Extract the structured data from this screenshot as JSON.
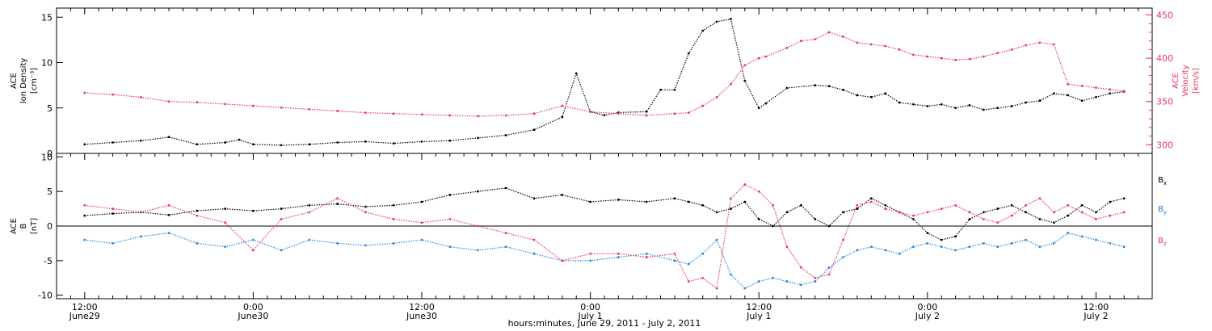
{
  "chart_data": [
    {
      "type": "scatter",
      "panel": "top",
      "ylabel_left": [
        "ACE",
        "Ion Density",
        "[cm⁻³]"
      ],
      "ylabel_right": [
        "ACE",
        "Velocity",
        "[km/s]"
      ],
      "ylim_left": [
        0,
        16
      ],
      "yticks_left": [
        "0",
        "5",
        "10",
        "15"
      ],
      "ylim_right": [
        290,
        458
      ],
      "yticks_right": [
        "300",
        "350",
        "400",
        "450"
      ],
      "xlim_hours": [
        -2,
        76
      ],
      "series": [
        {
          "axis": "left",
          "color": "#000000",
          "x": [
            0,
            2,
            4,
            6,
            8,
            10,
            11,
            12,
            14,
            16,
            18,
            20,
            22,
            24,
            26,
            28,
            30,
            32,
            34,
            35,
            36,
            37,
            38,
            40,
            41,
            42,
            43,
            44,
            45,
            46,
            47,
            48,
            48.5,
            50,
            52,
            53,
            54,
            55,
            56,
            57,
            58,
            59,
            60,
            61,
            62,
            63,
            64,
            65,
            66,
            67,
            68,
            69,
            70,
            71,
            72,
            73,
            74
          ],
          "y": [
            1.0,
            1.2,
            1.4,
            1.8,
            1.0,
            1.2,
            1.5,
            1.0,
            0.9,
            1.0,
            1.2,
            1.3,
            1.1,
            1.3,
            1.4,
            1.7,
            2.0,
            2.6,
            4.0,
            8.8,
            4.6,
            4.2,
            4.5,
            4.6,
            7.0,
            7.0,
            11.0,
            13.5,
            14.5,
            14.8,
            8.0,
            5.0,
            5.5,
            7.2,
            7.5,
            7.4,
            7.0,
            6.4,
            6.2,
            6.6,
            5.6,
            5.4,
            5.2,
            5.4,
            5.0,
            5.3,
            4.8,
            5.0,
            5.2,
            5.6,
            5.8,
            6.6,
            6.4,
            5.8,
            6.2,
            6.6,
            6.8
          ]
        },
        {
          "axis": "right",
          "color": "#e8355f",
          "x": [
            0,
            2,
            4,
            6,
            8,
            10,
            12,
            14,
            16,
            18,
            20,
            22,
            24,
            26,
            28,
            30,
            32,
            34,
            36,
            38,
            40,
            42,
            43,
            44,
            45,
            46,
            47,
            48,
            48.5,
            50,
            51,
            52,
            53,
            54,
            55,
            56,
            57,
            58,
            59,
            60,
            61,
            62,
            63,
            64,
            65,
            66,
            67,
            68,
            69,
            70,
            71,
            72,
            73,
            74
          ],
          "y": [
            360,
            358,
            355,
            350,
            349,
            347,
            345,
            343,
            341,
            339,
            337,
            336,
            335,
            334,
            333,
            334,
            336,
            345,
            338,
            336,
            334,
            336,
            337,
            345,
            355,
            370,
            392,
            400,
            402,
            412,
            420,
            422,
            430,
            425,
            418,
            416,
            414,
            410,
            404,
            402,
            400,
            398,
            399,
            402,
            406,
            410,
            415,
            418,
            416,
            370,
            368,
            366,
            364,
            362
          ]
        }
      ]
    },
    {
      "type": "scatter",
      "panel": "bottom",
      "ylabel": [
        "ACE",
        "B",
        "[nT]"
      ],
      "ylim": [
        -10.5,
        10.5
      ],
      "yticks": [
        "-10",
        "-5",
        "0",
        "5",
        "10"
      ],
      "xlim_hours": [
        -2,
        76
      ],
      "zero_line": true,
      "legend_placement": "right",
      "series": [
        {
          "name": "Bx",
          "color": "#000000",
          "x": [
            0,
            2,
            4,
            6,
            8,
            10,
            12,
            14,
            16,
            18,
            20,
            22,
            24,
            26,
            28,
            30,
            32,
            34,
            36,
            38,
            40,
            42,
            43,
            44,
            45,
            46,
            47,
            48,
            49,
            50,
            51,
            52,
            53,
            54,
            55,
            56,
            57,
            58,
            59,
            60,
            61,
            62,
            63,
            64,
            65,
            66,
            67,
            68,
            69,
            70,
            71,
            72,
            73,
            74
          ],
          "y": [
            1.5,
            1.8,
            2.0,
            1.6,
            2.2,
            2.5,
            2.2,
            2.5,
            3.0,
            3.2,
            2.8,
            3.0,
            3.5,
            4.5,
            5.0,
            5.5,
            4.0,
            4.5,
            3.5,
            3.8,
            3.5,
            4.0,
            3.5,
            3.0,
            2.0,
            2.5,
            3.5,
            1.0,
            0.0,
            2.0,
            3.0,
            1.0,
            0.0,
            2.0,
            2.5,
            4.0,
            3.0,
            2.0,
            1.0,
            -1.0,
            -2.0,
            -1.5,
            1.0,
            2.0,
            2.5,
            3.0,
            2.0,
            1.0,
            0.5,
            1.5,
            3.0,
            2.0,
            3.5,
            4.0
          ]
        },
        {
          "name": "By",
          "color": "#1e88e5",
          "x": [
            0,
            2,
            4,
            6,
            8,
            10,
            12,
            14,
            16,
            18,
            20,
            22,
            24,
            26,
            28,
            30,
            32,
            34,
            36,
            38,
            40,
            42,
            43,
            44,
            45,
            46,
            47,
            48,
            49,
            50,
            51,
            52,
            53,
            54,
            55,
            56,
            57,
            58,
            59,
            60,
            61,
            62,
            63,
            64,
            65,
            66,
            67,
            68,
            69,
            70,
            71,
            72,
            73,
            74
          ],
          "y": [
            -2.0,
            -2.5,
            -1.5,
            -1.0,
            -2.5,
            -3.0,
            -2.0,
            -3.5,
            -2.0,
            -2.5,
            -2.8,
            -2.5,
            -2.0,
            -3.0,
            -3.5,
            -3.0,
            -4.0,
            -5.0,
            -5.0,
            -4.5,
            -4.0,
            -5.0,
            -5.5,
            -4.0,
            -2.0,
            -7.0,
            -9.0,
            -8.0,
            -7.5,
            -8.0,
            -8.5,
            -8.0,
            -6.0,
            -4.5,
            -3.5,
            -3.0,
            -3.5,
            -4.0,
            -3.0,
            -2.5,
            -3.0,
            -3.5,
            -3.0,
            -2.5,
            -3.0,
            -2.5,
            -2.0,
            -3.0,
            -2.5,
            -1.0,
            -1.5,
            -2.0,
            -2.5,
            -3.0
          ]
        },
        {
          "name": "Bz",
          "color": "#e8355f",
          "x": [
            0,
            2,
            4,
            6,
            8,
            10,
            12,
            14,
            16,
            18,
            20,
            22,
            24,
            26,
            28,
            30,
            32,
            34,
            36,
            38,
            40,
            42,
            43,
            44,
            45,
            46,
            47,
            48,
            49,
            50,
            51,
            52,
            53,
            54,
            55,
            56,
            57,
            58,
            59,
            60,
            61,
            62,
            63,
            64,
            65,
            66,
            67,
            68,
            69,
            70,
            71,
            72,
            73,
            74
          ],
          "y": [
            3.0,
            2.5,
            2.0,
            3.0,
            1.5,
            0.5,
            -3.5,
            1.0,
            2.0,
            4.0,
            2.0,
            1.0,
            0.5,
            1.0,
            0.0,
            -1.0,
            -2.0,
            -5.0,
            -4.0,
            -4.0,
            -4.5,
            -4.0,
            -8.0,
            -7.5,
            -9.0,
            4.0,
            6.0,
            5.0,
            3.0,
            -3.0,
            -6.0,
            -7.5,
            -7.0,
            -2.0,
            3.0,
            3.5,
            2.5,
            2.0,
            1.5,
            2.0,
            2.5,
            3.0,
            2.0,
            1.0,
            0.5,
            1.5,
            3.0,
            4.0,
            2.0,
            3.0,
            2.0,
            1.0,
            1.5,
            2.0
          ]
        }
      ]
    }
  ],
  "x_axis": {
    "ticks": [
      {
        "hour": 0,
        "time": "12:00",
        "date": "June29"
      },
      {
        "hour": 12,
        "time": "0:00",
        "date": "June30"
      },
      {
        "hour": 24,
        "time": "12:00",
        "date": "June30"
      },
      {
        "hour": 36,
        "time": "0:00",
        "date": "July 1"
      },
      {
        "hour": 48,
        "time": "12:00",
        "date": "July 1"
      },
      {
        "hour": 60,
        "time": "0:00",
        "date": "July 2"
      },
      {
        "hour": 72,
        "time": "12:00",
        "date": "July 2"
      }
    ],
    "xlabel": "hours:minutes, June 29, 2011 - July  2, 2011"
  },
  "legend": {
    "bx_label": "B",
    "bx_sub": "x",
    "by_label": "B",
    "by_sub": "y",
    "bz_label": "B",
    "bz_sub": "z"
  },
  "colors": {
    "black": "#000000",
    "pink": "#e8355f",
    "blue": "#1e88e5"
  }
}
